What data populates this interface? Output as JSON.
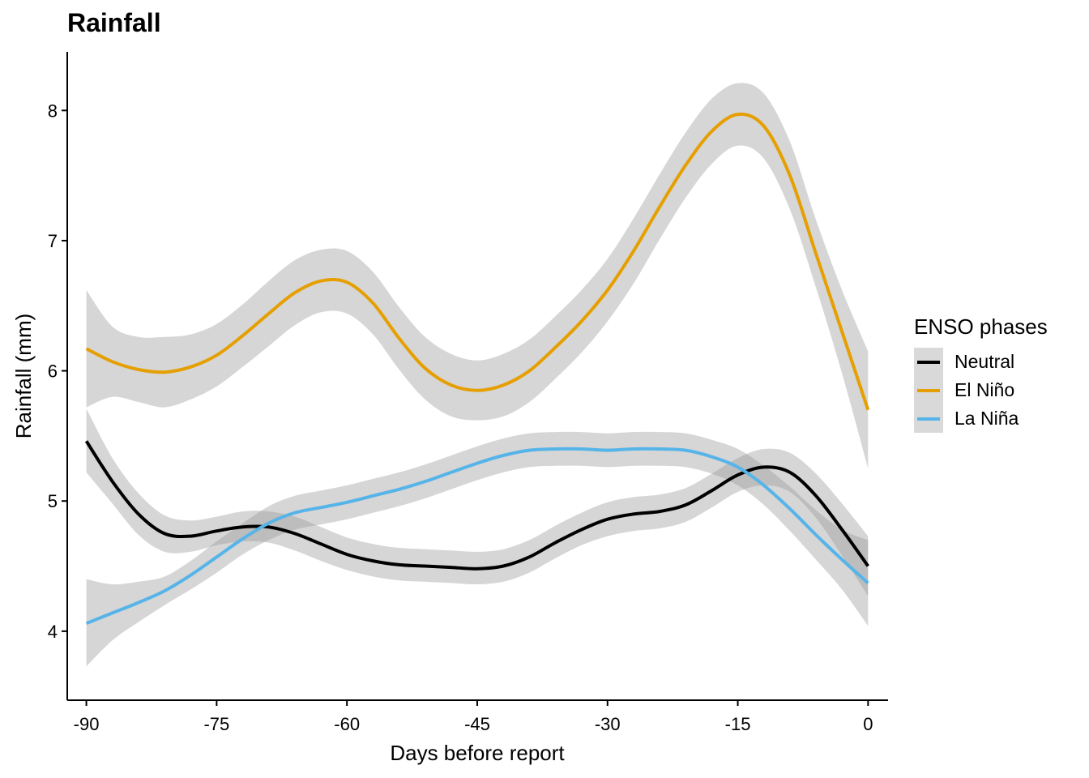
{
  "chart_data": {
    "type": "line",
    "title": "Rainfall",
    "xlabel": "Days before report",
    "ylabel": "Rainfall (mm)",
    "xlim": [
      -92.2,
      2.3
    ],
    "ylim": [
      3.47,
      8.45
    ],
    "xticks": [
      -90,
      -75,
      -60,
      -45,
      -30,
      -15,
      0
    ],
    "xtick_labels": [
      "-90",
      "-75",
      "-60",
      "-45",
      "-30",
      "-15",
      "0"
    ],
    "yticks": [
      4,
      5,
      6,
      7,
      8
    ],
    "ytick_labels": [
      "4",
      "5",
      "6",
      "7",
      "8"
    ],
    "grid": false,
    "legend": {
      "title": "ENSO phases",
      "position": "right"
    },
    "x": [
      -90,
      -87,
      -84,
      -81,
      -78,
      -75,
      -72,
      -69,
      -66,
      -63,
      -60,
      -57,
      -54,
      -51,
      -48,
      -45,
      -42,
      -39,
      -36,
      -33,
      -30,
      -27,
      -24,
      -21,
      -18,
      -15,
      -12,
      -9,
      -6,
      -3,
      0
    ],
    "series": [
      {
        "name": "Neutral",
        "color": "#000000",
        "values": [
          5.46,
          5.15,
          4.9,
          4.75,
          4.73,
          4.77,
          4.8,
          4.8,
          4.75,
          4.67,
          4.59,
          4.54,
          4.51,
          4.5,
          4.49,
          4.48,
          4.5,
          4.57,
          4.68,
          4.78,
          4.86,
          4.9,
          4.92,
          4.97,
          5.08,
          5.2,
          5.26,
          5.22,
          5.04,
          4.78,
          4.5
        ],
        "lower": [
          5.22,
          4.98,
          4.74,
          4.61,
          4.61,
          4.66,
          4.69,
          4.68,
          4.62,
          4.54,
          4.47,
          4.42,
          4.39,
          4.38,
          4.37,
          4.36,
          4.38,
          4.45,
          4.56,
          4.66,
          4.73,
          4.77,
          4.79,
          4.84,
          4.95,
          5.07,
          5.12,
          5.07,
          4.87,
          4.58,
          4.27
        ],
        "upper": [
          5.71,
          5.33,
          5.06,
          4.89,
          4.85,
          4.88,
          4.92,
          4.92,
          4.88,
          4.8,
          4.72,
          4.67,
          4.64,
          4.63,
          4.62,
          4.61,
          4.63,
          4.7,
          4.81,
          4.91,
          4.99,
          5.03,
          5.05,
          5.1,
          5.21,
          5.33,
          5.4,
          5.37,
          5.21,
          4.98,
          4.73
        ]
      },
      {
        "name": "El Niño",
        "color": "#E69F00",
        "values": [
          6.17,
          6.07,
          6.01,
          5.99,
          6.03,
          6.12,
          6.27,
          6.44,
          6.6,
          6.69,
          6.68,
          6.52,
          6.25,
          6.02,
          5.89,
          5.85,
          5.89,
          6.0,
          6.18,
          6.38,
          6.62,
          6.92,
          7.26,
          7.58,
          7.84,
          7.97,
          7.88,
          7.5,
          6.9,
          6.3,
          5.7
        ],
        "lower": [
          5.72,
          5.8,
          5.76,
          5.72,
          5.78,
          5.88,
          6.03,
          6.19,
          6.35,
          6.45,
          6.44,
          6.28,
          6.01,
          5.78,
          5.65,
          5.62,
          5.65,
          5.76,
          5.94,
          6.14,
          6.38,
          6.67,
          7.01,
          7.33,
          7.59,
          7.73,
          7.63,
          7.24,
          6.64,
          5.98,
          5.25
        ],
        "upper": [
          6.62,
          6.34,
          6.26,
          6.26,
          6.28,
          6.36,
          6.51,
          6.69,
          6.85,
          6.93,
          6.92,
          6.76,
          6.49,
          6.26,
          6.13,
          6.08,
          6.13,
          6.24,
          6.42,
          6.62,
          6.86,
          7.17,
          7.51,
          7.83,
          8.09,
          8.21,
          8.13,
          7.76,
          7.16,
          6.62,
          6.15
        ]
      },
      {
        "name": "La Niña",
        "color": "#56B4E9",
        "values": [
          4.06,
          4.14,
          4.22,
          4.31,
          4.43,
          4.57,
          4.71,
          4.83,
          4.91,
          4.95,
          4.99,
          5.04,
          5.09,
          5.15,
          5.22,
          5.29,
          5.35,
          5.39,
          5.4,
          5.4,
          5.39,
          5.4,
          5.4,
          5.39,
          5.34,
          5.26,
          5.12,
          4.94,
          4.74,
          4.55,
          4.37
        ],
        "lower": [
          3.73,
          3.93,
          4.07,
          4.2,
          4.32,
          4.45,
          4.59,
          4.7,
          4.78,
          4.82,
          4.86,
          4.91,
          4.96,
          5.02,
          5.09,
          5.16,
          5.22,
          5.26,
          5.27,
          5.27,
          5.26,
          5.27,
          5.27,
          5.26,
          5.21,
          5.12,
          4.97,
          4.77,
          4.55,
          4.32,
          4.04
        ],
        "upper": [
          4.4,
          4.36,
          4.38,
          4.42,
          4.54,
          4.69,
          4.83,
          4.96,
          5.04,
          5.08,
          5.12,
          5.17,
          5.22,
          5.28,
          5.35,
          5.42,
          5.48,
          5.52,
          5.53,
          5.53,
          5.52,
          5.53,
          5.53,
          5.52,
          5.47,
          5.4,
          5.27,
          5.11,
          4.93,
          4.78,
          4.7
        ]
      }
    ]
  }
}
